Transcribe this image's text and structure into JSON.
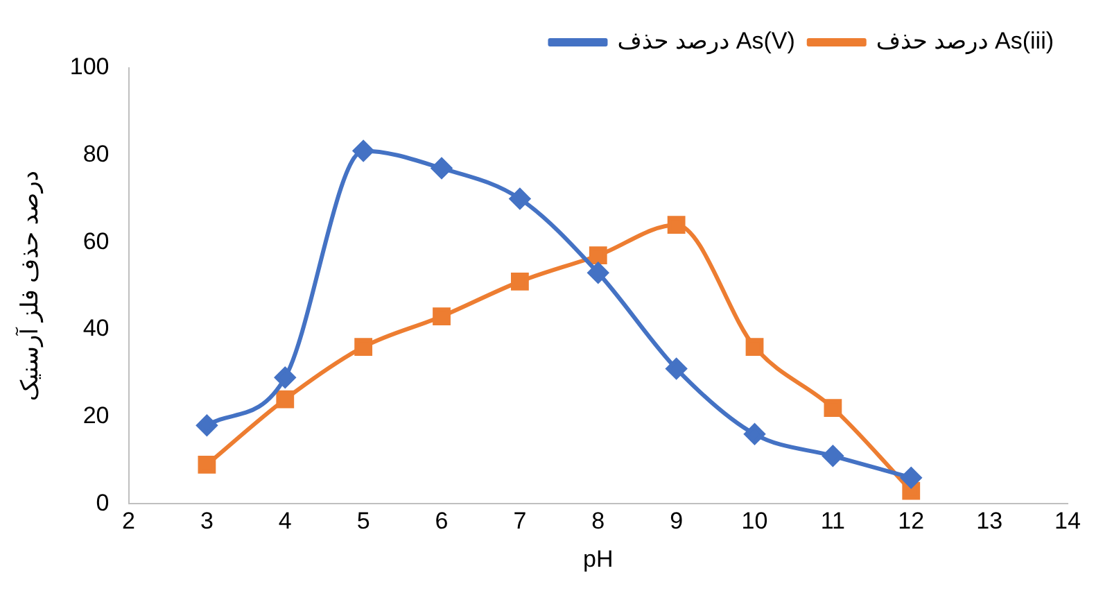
{
  "chart_data": {
    "type": "line",
    "xlabel": "pH",
    "ylabel": "درصد حذف فلز آرسنیک",
    "x": [
      3,
      4,
      5,
      6,
      7,
      8,
      9,
      10,
      11,
      12
    ],
    "xlim": [
      2,
      14
    ],
    "xticks": [
      2,
      3,
      4,
      5,
      6,
      7,
      8,
      9,
      10,
      11,
      12,
      13,
      14
    ],
    "ylim": [
      0,
      100
    ],
    "yticks": [
      0,
      20,
      40,
      60,
      80,
      100
    ],
    "grid": false,
    "legend": "top",
    "series": [
      {
        "name": "درصد حذف As(V)",
        "color": "#4472c4",
        "marker": "diamond",
        "values": [
          18,
          29,
          81,
          77,
          70,
          53,
          31,
          16,
          11,
          6
        ]
      },
      {
        "name": "درصد حذف As(iii)",
        "color": "#ed7d31",
        "marker": "square",
        "values": [
          9,
          24,
          36,
          43,
          51,
          57,
          64,
          36,
          22,
          3
        ]
      }
    ]
  }
}
